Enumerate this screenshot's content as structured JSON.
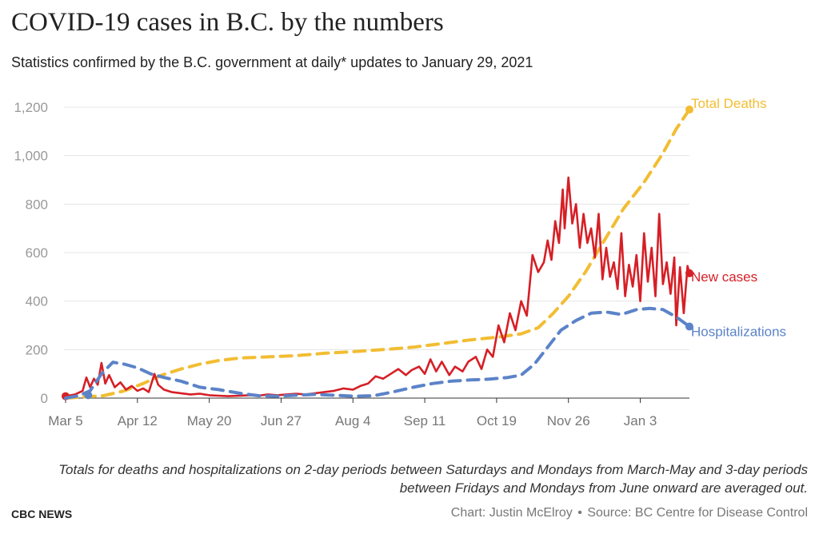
{
  "title": "COVID-19 cases in B.C. by the numbers",
  "subtitle": "Statistics confirmed by the B.C. government at daily* updates to January 29, 2021",
  "footnote": "Totals for deaths and hospitalizations on 2-day periods between Saturdays and Mondays from March-May and 3-day periods between Fridays and Mondays from June onward are averaged out.",
  "brand": "CBC NEWS",
  "credit": {
    "author": "Chart: Justin McElroy",
    "separator": "•",
    "source": "Source: BC Centre for Disease Control"
  },
  "chart_data": {
    "type": "line",
    "x_start": "2020-03-05",
    "x_end": "2021-01-29",
    "ylim": [
      0,
      1200
    ],
    "yticks": [
      0,
      200,
      400,
      600,
      800,
      1000,
      1200
    ],
    "ytick_labels": [
      "0",
      "200",
      "400",
      "600",
      "800",
      "1,000",
      "1,200"
    ],
    "xticks": [
      {
        "date": "2020-03-05",
        "label": "Mar 5"
      },
      {
        "date": "2020-04-12",
        "label": "Apr 12"
      },
      {
        "date": "2020-05-20",
        "label": "May 20"
      },
      {
        "date": "2020-06-27",
        "label": "Jun 27"
      },
      {
        "date": "2020-08-04",
        "label": "Aug 4"
      },
      {
        "date": "2020-09-11",
        "label": "Sep 11"
      },
      {
        "date": "2020-10-19",
        "label": "Oct 19"
      },
      {
        "date": "2020-11-26",
        "label": "Nov 26"
      },
      {
        "date": "2021-01-03",
        "label": "Jan 3"
      }
    ],
    "grid": true,
    "series": [
      {
        "name": "Total Deaths",
        "color": "#f2bd33",
        "style": "dashed",
        "end_marker": true,
        "points": [
          [
            "2020-03-05",
            0
          ],
          [
            "2020-03-15",
            5
          ],
          [
            "2020-03-25",
            10
          ],
          [
            "2020-04-05",
            30
          ],
          [
            "2020-04-15",
            60
          ],
          [
            "2020-04-25",
            95
          ],
          [
            "2020-05-05",
            120
          ],
          [
            "2020-05-15",
            140
          ],
          [
            "2020-05-25",
            155
          ],
          [
            "2020-06-05",
            165
          ],
          [
            "2020-06-20",
            170
          ],
          [
            "2020-07-05",
            175
          ],
          [
            "2020-07-20",
            185
          ],
          [
            "2020-08-05",
            192
          ],
          [
            "2020-08-20",
            200
          ],
          [
            "2020-09-05",
            210
          ],
          [
            "2020-09-20",
            225
          ],
          [
            "2020-10-05",
            240
          ],
          [
            "2020-10-20",
            252
          ],
          [
            "2020-11-01",
            265
          ],
          [
            "2020-11-10",
            290
          ],
          [
            "2020-11-18",
            350
          ],
          [
            "2020-11-26",
            420
          ],
          [
            "2020-12-05",
            520
          ],
          [
            "2020-12-15",
            650
          ],
          [
            "2020-12-25",
            780
          ],
          [
            "2021-01-05",
            890
          ],
          [
            "2021-01-15",
            1010
          ],
          [
            "2021-01-22",
            1110
          ],
          [
            "2021-01-29",
            1190
          ]
        ]
      },
      {
        "name": "New cases",
        "color": "#d61f26",
        "style": "solid",
        "end_marker": true,
        "start_marker": true,
        "points": [
          [
            "2020-03-05",
            8
          ],
          [
            "2020-03-10",
            15
          ],
          [
            "2020-03-14",
            30
          ],
          [
            "2020-03-16",
            85
          ],
          [
            "2020-03-18",
            45
          ],
          [
            "2020-03-20",
            80
          ],
          [
            "2020-03-22",
            55
          ],
          [
            "2020-03-24",
            145
          ],
          [
            "2020-03-26",
            60
          ],
          [
            "2020-03-28",
            95
          ],
          [
            "2020-03-31",
            45
          ],
          [
            "2020-04-03",
            65
          ],
          [
            "2020-04-06",
            35
          ],
          [
            "2020-04-09",
            50
          ],
          [
            "2020-04-12",
            30
          ],
          [
            "2020-04-15",
            40
          ],
          [
            "2020-04-18",
            25
          ],
          [
            "2020-04-21",
            100
          ],
          [
            "2020-04-23",
            55
          ],
          [
            "2020-04-26",
            35
          ],
          [
            "2020-04-30",
            25
          ],
          [
            "2020-05-05",
            20
          ],
          [
            "2020-05-10",
            15
          ],
          [
            "2020-05-15",
            18
          ],
          [
            "2020-05-20",
            12
          ],
          [
            "2020-05-25",
            10
          ],
          [
            "2020-05-30",
            8
          ],
          [
            "2020-06-05",
            10
          ],
          [
            "2020-06-10",
            12
          ],
          [
            "2020-06-15",
            10
          ],
          [
            "2020-06-20",
            15
          ],
          [
            "2020-06-25",
            12
          ],
          [
            "2020-06-30",
            15
          ],
          [
            "2020-07-05",
            18
          ],
          [
            "2020-07-10",
            15
          ],
          [
            "2020-07-15",
            20
          ],
          [
            "2020-07-20",
            25
          ],
          [
            "2020-07-25",
            30
          ],
          [
            "2020-07-30",
            40
          ],
          [
            "2020-08-04",
            35
          ],
          [
            "2020-08-08",
            50
          ],
          [
            "2020-08-12",
            60
          ],
          [
            "2020-08-16",
            90
          ],
          [
            "2020-08-20",
            80
          ],
          [
            "2020-08-24",
            100
          ],
          [
            "2020-08-28",
            120
          ],
          [
            "2020-09-01",
            95
          ],
          [
            "2020-09-04",
            115
          ],
          [
            "2020-09-08",
            130
          ],
          [
            "2020-09-11",
            100
          ],
          [
            "2020-09-14",
            160
          ],
          [
            "2020-09-17",
            110
          ],
          [
            "2020-09-20",
            150
          ],
          [
            "2020-09-24",
            95
          ],
          [
            "2020-09-27",
            130
          ],
          [
            "2020-10-01",
            110
          ],
          [
            "2020-10-04",
            150
          ],
          [
            "2020-10-08",
            170
          ],
          [
            "2020-10-11",
            120
          ],
          [
            "2020-10-14",
            200
          ],
          [
            "2020-10-17",
            170
          ],
          [
            "2020-10-20",
            300
          ],
          [
            "2020-10-23",
            230
          ],
          [
            "2020-10-26",
            350
          ],
          [
            "2020-10-29",
            280
          ],
          [
            "2020-11-01",
            400
          ],
          [
            "2020-11-04",
            340
          ],
          [
            "2020-11-07",
            590
          ],
          [
            "2020-11-10",
            520
          ],
          [
            "2020-11-13",
            560
          ],
          [
            "2020-11-15",
            650
          ],
          [
            "2020-11-17",
            570
          ],
          [
            "2020-11-19",
            730
          ],
          [
            "2020-11-21",
            640
          ],
          [
            "2020-11-23",
            860
          ],
          [
            "2020-11-24",
            700
          ],
          [
            "2020-11-26",
            910
          ],
          [
            "2020-11-28",
            720
          ],
          [
            "2020-11-30",
            800
          ],
          [
            "2020-12-02",
            620
          ],
          [
            "2020-12-04",
            760
          ],
          [
            "2020-12-06",
            640
          ],
          [
            "2020-12-08",
            700
          ],
          [
            "2020-12-10",
            580
          ],
          [
            "2020-12-12",
            760
          ],
          [
            "2020-12-14",
            490
          ],
          [
            "2020-12-16",
            620
          ],
          [
            "2020-12-18",
            500
          ],
          [
            "2020-12-20",
            560
          ],
          [
            "2020-12-22",
            450
          ],
          [
            "2020-12-24",
            680
          ],
          [
            "2020-12-26",
            420
          ],
          [
            "2020-12-28",
            550
          ],
          [
            "2020-12-30",
            460
          ],
          [
            "2021-01-01",
            590
          ],
          [
            "2021-01-03",
            400
          ],
          [
            "2021-01-05",
            680
          ],
          [
            "2021-01-07",
            480
          ],
          [
            "2021-01-09",
            620
          ],
          [
            "2021-01-11",
            420
          ],
          [
            "2021-01-13",
            760
          ],
          [
            "2021-01-15",
            470
          ],
          [
            "2021-01-17",
            560
          ],
          [
            "2021-01-19",
            430
          ],
          [
            "2021-01-21",
            580
          ],
          [
            "2021-01-22",
            300
          ],
          [
            "2021-01-24",
            540
          ],
          [
            "2021-01-26",
            350
          ],
          [
            "2021-01-28",
            545
          ],
          [
            "2021-01-29",
            515
          ]
        ]
      },
      {
        "name": "Hospitalizations",
        "color": "#5b83c8",
        "style": "dashed",
        "end_marker": true,
        "points": [
          [
            "2020-03-05",
            0
          ],
          [
            "2020-03-12",
            10
          ],
          [
            "2020-03-18",
            30
          ],
          [
            "2020-03-24",
            100
          ],
          [
            "2020-03-30",
            148
          ],
          [
            "2020-04-05",
            140
          ],
          [
            "2020-04-12",
            125
          ],
          [
            "2020-04-19",
            100
          ],
          [
            "2020-04-26",
            85
          ],
          [
            "2020-05-05",
            70
          ],
          [
            "2020-05-15",
            45
          ],
          [
            "2020-05-25",
            35
          ],
          [
            "2020-06-05",
            20
          ],
          [
            "2020-06-15",
            10
          ],
          [
            "2020-06-25",
            8
          ],
          [
            "2020-07-05",
            12
          ],
          [
            "2020-07-15",
            15
          ],
          [
            "2020-07-25",
            12
          ],
          [
            "2020-08-04",
            8
          ],
          [
            "2020-08-15",
            10
          ],
          [
            "2020-08-25",
            25
          ],
          [
            "2020-09-05",
            45
          ],
          [
            "2020-09-15",
            60
          ],
          [
            "2020-09-25",
            70
          ],
          [
            "2020-10-05",
            75
          ],
          [
            "2020-10-15",
            78
          ],
          [
            "2020-10-25",
            85
          ],
          [
            "2020-11-01",
            95
          ],
          [
            "2020-11-08",
            140
          ],
          [
            "2020-11-15",
            210
          ],
          [
            "2020-11-22",
            280
          ],
          [
            "2020-11-30",
            320
          ],
          [
            "2020-12-08",
            350
          ],
          [
            "2020-12-16",
            355
          ],
          [
            "2020-12-24",
            345
          ],
          [
            "2021-01-01",
            365
          ],
          [
            "2021-01-08",
            370
          ],
          [
            "2021-01-15",
            365
          ],
          [
            "2021-01-22",
            335
          ],
          [
            "2021-01-29",
            295
          ]
        ]
      }
    ]
  }
}
